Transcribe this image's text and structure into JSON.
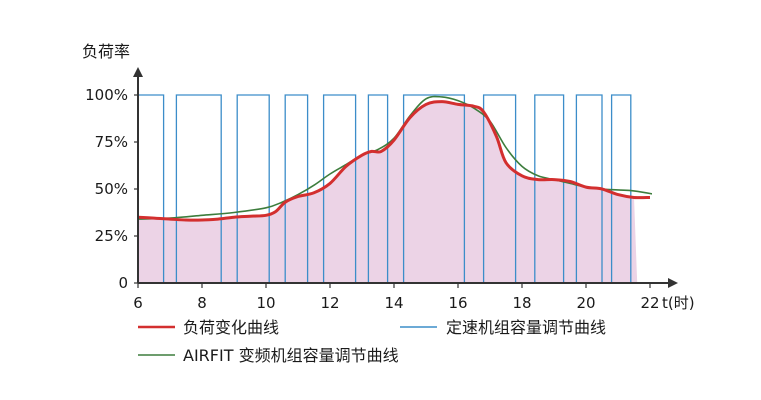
{
  "chart_data": {
    "type": "line",
    "ylabel": "负荷率",
    "xlabel": "t(时)",
    "xlim": [
      6,
      22
    ],
    "ylim": [
      0,
      100
    ],
    "xticks": [
      6,
      8,
      10,
      12,
      14,
      16,
      18,
      20,
      22
    ],
    "yticks": [
      {
        "value": 0,
        "label": "0"
      },
      {
        "value": 25,
        "label": "25%"
      },
      {
        "value": 50,
        "label": "50%"
      },
      {
        "value": 75,
        "label": "75%"
      },
      {
        "value": 100,
        "label": "100%"
      }
    ],
    "grid": false,
    "legend_position": "bottom",
    "colors": {
      "load": "#d32f2f",
      "fixed": "#3c8dc9",
      "airfit": "#3d7d3d",
      "fill": "#ecd3e6"
    },
    "series": [
      {
        "name": "负荷变化曲线",
        "style": "thick-line-with-fill",
        "x": [
          6,
          6.5,
          7,
          7.5,
          8,
          8.5,
          9,
          9.5,
          10,
          10.3,
          10.6,
          11,
          11.5,
          12,
          12.5,
          13,
          13.3,
          13.6,
          14,
          14.5,
          15,
          15.5,
          16,
          16.5,
          16.8,
          17.2,
          17.5,
          18,
          18.5,
          19,
          19.5,
          20,
          20.5,
          21,
          21.5,
          22
        ],
        "values": [
          35,
          34.5,
          34,
          33.5,
          33.5,
          34,
          35,
          35.5,
          36,
          38,
          43,
          46,
          48,
          53,
          62,
          68,
          70,
          70,
          76,
          88,
          95,
          96.5,
          95,
          94,
          91,
          78,
          64,
          57,
          55,
          55,
          54,
          51,
          50,
          47,
          45.5,
          45.5
        ]
      },
      {
        "name": "定速机组容量调节曲线",
        "style": "step",
        "on_intervals": [
          [
            6,
            6.8
          ],
          [
            7.2,
            8.6
          ],
          [
            9.1,
            10.1
          ],
          [
            10.6,
            11.3
          ],
          [
            11.8,
            12.8
          ],
          [
            13.2,
            13.8
          ],
          [
            14.3,
            16.2
          ],
          [
            16.8,
            17.8
          ],
          [
            18.4,
            19.3
          ],
          [
            19.7,
            20.5
          ],
          [
            20.8,
            21.4
          ]
        ],
        "values_on": 100,
        "values_off": 0
      },
      {
        "name": "AIRFIT 变频机组容量调节曲线",
        "style": "thin-line",
        "x": [
          6,
          7,
          8,
          9,
          10,
          10.5,
          11,
          11.5,
          12,
          12.5,
          13,
          13.5,
          14,
          14.5,
          15,
          15.5,
          16,
          16.5,
          17,
          17.5,
          18,
          18.5,
          19,
          19.5,
          20,
          20.5,
          21,
          21.5,
          22.2
        ],
        "values": [
          34,
          34.5,
          36,
          37.5,
          40,
          43,
          47,
          52,
          58,
          63,
          68,
          71,
          77,
          89,
          98,
          99,
          97,
          93,
          86,
          72,
          62,
          57,
          55,
          53,
          51,
          50,
          49.5,
          49,
          47
        ]
      }
    ]
  }
}
